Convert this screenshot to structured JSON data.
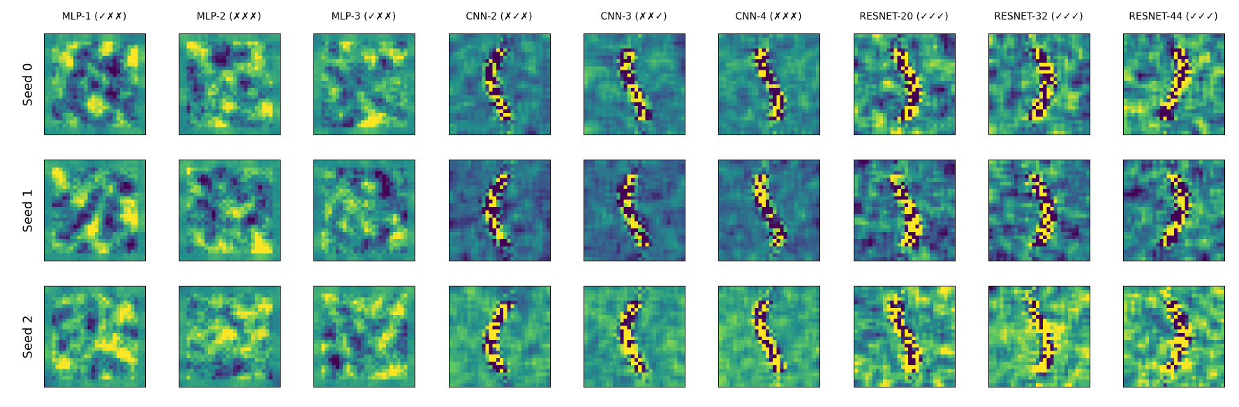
{
  "figure": {
    "columns": [
      {
        "label": "MLP-1 (✓✗✗)",
        "kind": "mlp"
      },
      {
        "label": "MLP-2 (✗✗✗)",
        "kind": "mlp"
      },
      {
        "label": "MLP-3 (✓✗✗)",
        "kind": "mlp"
      },
      {
        "label": "CNN-2 (✗✓✗)",
        "kind": "cnn"
      },
      {
        "label": "CNN-3 (✗✗✓)",
        "kind": "cnn"
      },
      {
        "label": "CNN-4 (✗✗✗)",
        "kind": "cnn"
      },
      {
        "label": "RESNET-20 (✓✓✓)",
        "kind": "resnet"
      },
      {
        "label": "RESNET-32 (✓✓✓)",
        "kind": "resnet"
      },
      {
        "label": "RESNET-44 (✓✓✓)",
        "kind": "resnet"
      }
    ],
    "rows": [
      {
        "label": "Seed 0"
      },
      {
        "label": "Seed 1"
      },
      {
        "label": "Seed 2"
      }
    ],
    "colormap": "viridis",
    "colormap_stops": [
      "#440154",
      "#3b528b",
      "#21918c",
      "#5ec962",
      "#fde725"
    ]
  }
}
